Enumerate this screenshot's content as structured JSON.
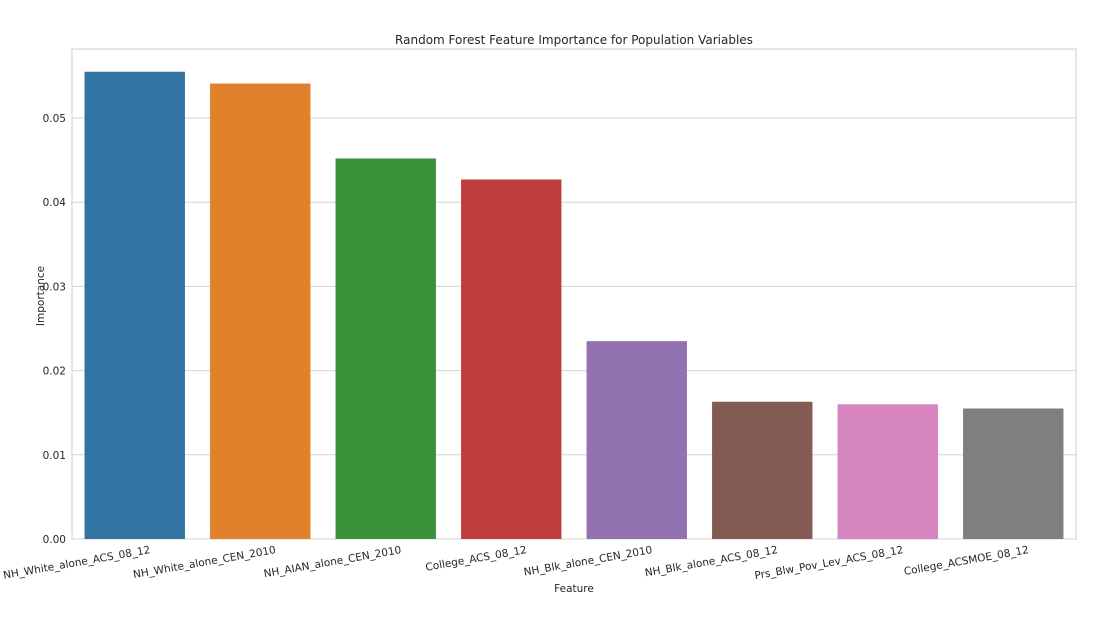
{
  "chart_data": {
    "type": "bar",
    "title": "Random Forest Feature Importance for Population Variables",
    "xlabel": "Feature",
    "ylabel": "Importance",
    "categories": [
      "NH_White_alone_ACS_08_12",
      "NH_White_alone_CEN_2010",
      "NH_AIAN_alone_CEN_2010",
      "College_ACS_08_12",
      "NH_Blk_alone_CEN_2010",
      "NH_Blk_alone_ACS_08_12",
      "Prs_Blw_Pov_Lev_ACS_08_12",
      "College_ACSMOE_08_12"
    ],
    "values": [
      0.0555,
      0.0541,
      0.0452,
      0.0427,
      0.0235,
      0.0163,
      0.016,
      0.0155
    ],
    "colors": [
      "#3274a1",
      "#e1812c",
      "#3a923a",
      "#c03d3e",
      "#9372b2",
      "#845b53",
      "#d684bd",
      "#7f7f7f"
    ],
    "ylim": [
      0,
      0.0582
    ],
    "yticks": [
      "0.00",
      "0.01",
      "0.02",
      "0.03",
      "0.04",
      "0.05"
    ],
    "grid": true,
    "legend": "none"
  }
}
